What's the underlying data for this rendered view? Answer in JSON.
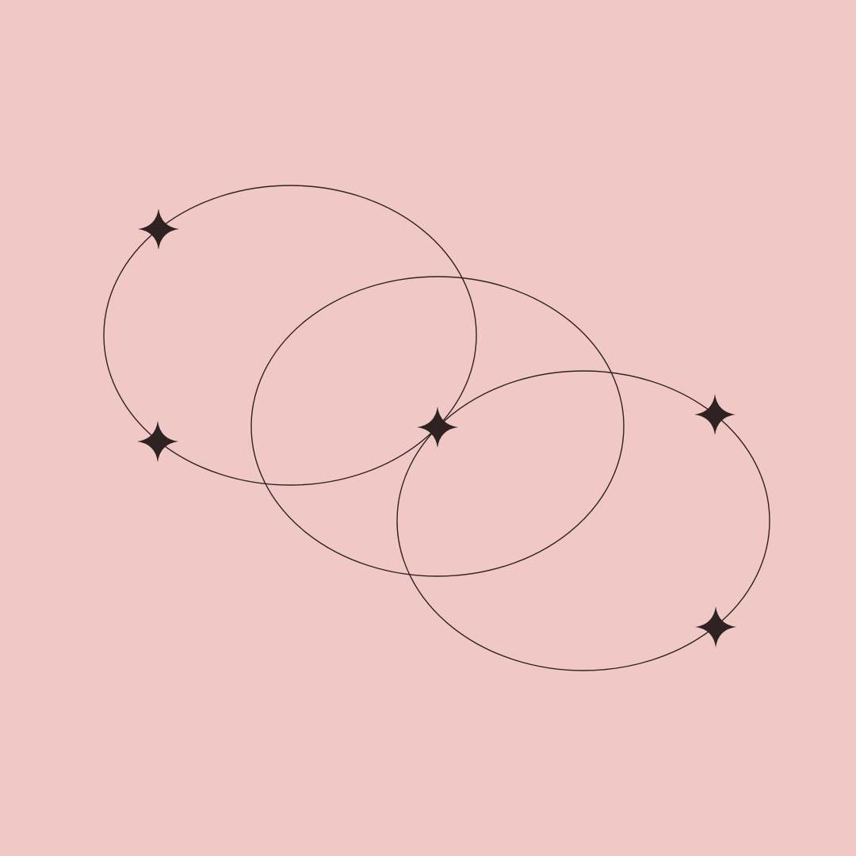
{
  "colors": {
    "background": "#f0c8c6",
    "stroke": "#2e2322",
    "sparkle": "#2e2322"
  },
  "shapes": {
    "rings": [
      {
        "name": "ring-left"
      },
      {
        "name": "ring-middle"
      },
      {
        "name": "ring-right"
      }
    ],
    "sparkles": [
      {
        "name": "sparkle-icon-top-left"
      },
      {
        "name": "sparkle-icon-bottom-left"
      },
      {
        "name": "sparkle-icon-center"
      },
      {
        "name": "sparkle-icon-right-upper"
      },
      {
        "name": "sparkle-icon-right-lower"
      }
    ]
  }
}
